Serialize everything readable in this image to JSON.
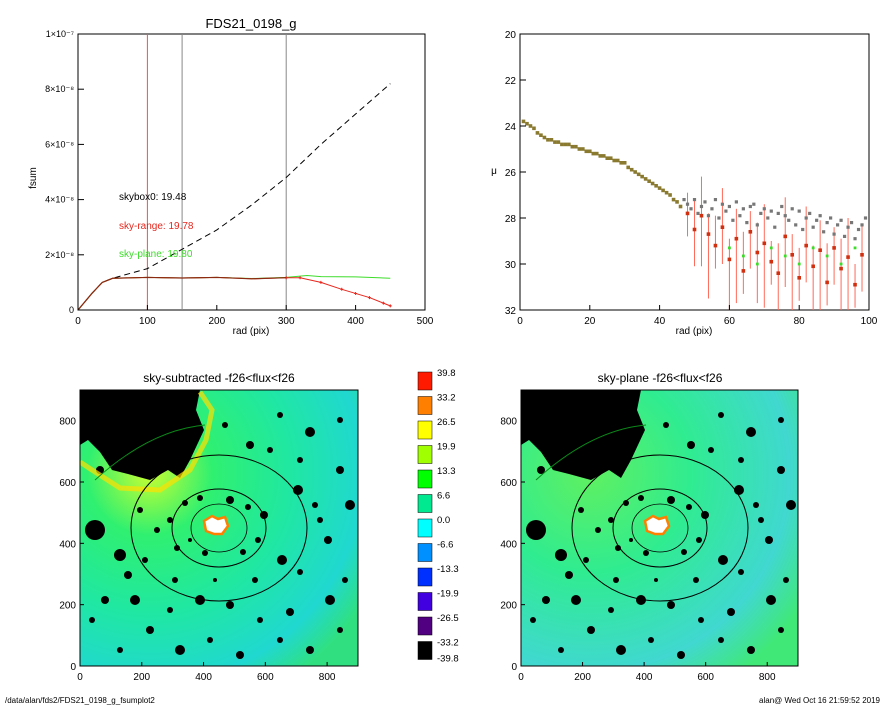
{
  "footer": {
    "path": "/data/alan/fds2/FDS21_0198_g_fsumplot2",
    "user_date": "alan@  Wed Oct 16 21:59:52 2019"
  },
  "colors": {
    "sky_range": "#e8261c",
    "sky_plane": "#3ddc2a",
    "skybox": "#000000",
    "vline_red": "#ff4a4a",
    "vline_gray": "#888888"
  },
  "chart_data": [
    {
      "type": "line",
      "title": "FDS21_0198_g",
      "xlabel": "rad (pix)",
      "ylabel": "fsum",
      "xlim": [
        0,
        500
      ],
      "ylim": [
        0,
        1e-07
      ],
      "xticks": [
        "0",
        "100",
        "200",
        "300",
        "400",
        "500"
      ],
      "yticks": [
        "0",
        "2×10⁻⁸",
        "4×10⁻⁸",
        "6×10⁻⁸",
        "8×10⁻⁸",
        "1×10⁻⁷"
      ],
      "vlines": [
        100,
        150,
        300
      ],
      "annotations": [
        {
          "text": "skybox0: 19.48",
          "color": "#000000"
        },
        {
          "text": "sky-range: 19.78",
          "color": "#e8261c"
        },
        {
          "text": "sky-plane: 19.80",
          "color": "#3ddc2a"
        }
      ],
      "series": [
        {
          "key": "dashed",
          "x": [
            0,
            20,
            35,
            50,
            100,
            150,
            200,
            250,
            300,
            350,
            400,
            450
          ],
          "y": [
            0,
            6e-09,
            1e-08,
            1.15e-08,
            1.5e-08,
            2.2e-08,
            2.9e-08,
            3.8e-08,
            4.8e-08,
            6e-08,
            7.1e-08,
            8.2e-08
          ]
        },
        {
          "key": "sky_plane",
          "x": [
            0,
            20,
            35,
            50,
            100,
            150,
            200,
            250,
            300,
            330,
            350,
            400,
            450
          ],
          "y": [
            0,
            6e-09,
            1e-08,
            1.15e-08,
            1.18e-08,
            1.16e-08,
            1.18e-08,
            1.14e-08,
            1.18e-08,
            1.25e-08,
            1.21e-08,
            1.2e-08,
            1.15e-08
          ]
        },
        {
          "key": "sky_range",
          "x": [
            0,
            20,
            35,
            50,
            100,
            150,
            200,
            250,
            300,
            320,
            350,
            380,
            400,
            420,
            440,
            450
          ],
          "y": [
            0,
            6e-09,
            1e-08,
            1.15e-08,
            1.18e-08,
            1.16e-08,
            1.18e-08,
            1.13e-08,
            1.17e-08,
            1.17e-08,
            1e-08,
            7.5e-09,
            6e-09,
            4.5e-09,
            2.5e-09,
            1.5e-09
          ]
        }
      ]
    },
    {
      "type": "scatter",
      "xlabel": "rad (pix)",
      "ylabel": "μ",
      "xlim": [
        0,
        100
      ],
      "ylim": [
        32,
        20
      ],
      "xticks": [
        "0",
        "20",
        "40",
        "60",
        "80",
        "100"
      ],
      "yticks": [
        "20",
        "22",
        "24",
        "26",
        "28",
        "30",
        "32"
      ],
      "series": [
        {
          "key": "profile_main",
          "x": [
            1,
            2,
            3,
            4,
            5,
            6,
            7,
            8,
            9,
            10,
            11,
            12,
            13,
            14,
            15,
            16,
            17,
            18,
            19,
            20,
            21,
            22,
            23,
            24,
            25,
            26,
            27,
            28,
            29,
            30,
            31,
            32,
            33,
            34,
            35,
            36,
            37,
            38,
            39,
            40,
            41,
            42,
            43,
            44,
            45,
            46
          ],
          "y": [
            23.8,
            23.9,
            24.0,
            24.1,
            24.3,
            24.4,
            24.5,
            24.6,
            24.6,
            24.7,
            24.7,
            24.8,
            24.8,
            24.8,
            24.9,
            24.9,
            25.0,
            25.0,
            25.1,
            25.1,
            25.2,
            25.2,
            25.3,
            25.3,
            25.4,
            25.4,
            25.5,
            25.5,
            25.6,
            25.6,
            25.8,
            25.9,
            26.0,
            26.1,
            26.2,
            26.3,
            26.4,
            26.5,
            26.6,
            26.7,
            26.8,
            26.9,
            27.0,
            27.2,
            27.3,
            27.5
          ]
        },
        {
          "key": "profile_gray",
          "x": [
            47,
            48,
            49,
            50,
            51,
            52,
            53,
            54,
            55,
            56,
            57,
            58,
            59,
            60,
            61,
            62,
            63,
            64,
            65,
            66,
            67,
            68,
            69,
            70,
            71,
            72,
            73,
            74,
            75,
            76,
            77,
            78,
            79,
            80,
            81,
            82,
            83,
            84,
            85,
            86,
            87,
            88,
            89,
            90,
            91,
            92,
            93,
            94,
            95,
            96,
            97,
            98,
            99
          ],
          "y": [
            27.2,
            27.4,
            27.6,
            27.2,
            27.8,
            27.5,
            27.3,
            27.9,
            27.6,
            27.2,
            28.0,
            27.4,
            27.7,
            27.5,
            28.1,
            27.3,
            27.9,
            27.6,
            28.2,
            27.5,
            27.4,
            28.3,
            27.8,
            27.6,
            28.0,
            27.7,
            28.4,
            27.8,
            27.5,
            27.9,
            28.1,
            27.6,
            28.3,
            27.7,
            28.5,
            28.0,
            27.8,
            28.4,
            28.1,
            27.9,
            28.6,
            28.2,
            28.0,
            28.7,
            28.3,
            28.1,
            28.8,
            28.4,
            28.2,
            28.9,
            28.5,
            28.3,
            28.0
          ]
        },
        {
          "key": "profile_red",
          "x": [
            48,
            50,
            52,
            54,
            56,
            58,
            60,
            62,
            64,
            66,
            68,
            70,
            72,
            74,
            76,
            78,
            80,
            82,
            84,
            86,
            88,
            90,
            92,
            94,
            96,
            98
          ],
          "y": [
            27.8,
            28.5,
            27.9,
            28.7,
            29.2,
            28.4,
            29.8,
            28.9,
            30.3,
            28.6,
            29.5,
            29.1,
            29.9,
            30.4,
            28.8,
            29.6,
            30.6,
            29.2,
            30.1,
            29.4,
            30.8,
            29.3,
            30.2,
            29.7,
            30.9,
            29.6
          ]
        }
      ]
    }
  ],
  "images": {
    "left_title": "sky-subtracted -f26<flux<f26",
    "right_title": "sky-plane -f26<flux<f26",
    "xticks": [
      "0",
      "200",
      "400",
      "600",
      "800"
    ],
    "yticks": [
      "0",
      "200",
      "400",
      "600",
      "800"
    ]
  },
  "colorbar": {
    "labels": [
      "39.8",
      "33.2",
      "26.5",
      "19.9",
      "13.3",
      "6.6",
      "0.0",
      "-6.6",
      "-13.3",
      "-19.9",
      "-26.5",
      "-33.2",
      "-39.8"
    ],
    "colors": [
      "#ff1a00",
      "#ff7f00",
      "#ffff00",
      "#a0ff00",
      "#00ff00",
      "#00e890",
      "#00ffff",
      "#0090ff",
      "#0030ff",
      "#4000e0",
      "#500080",
      "#000000"
    ]
  }
}
